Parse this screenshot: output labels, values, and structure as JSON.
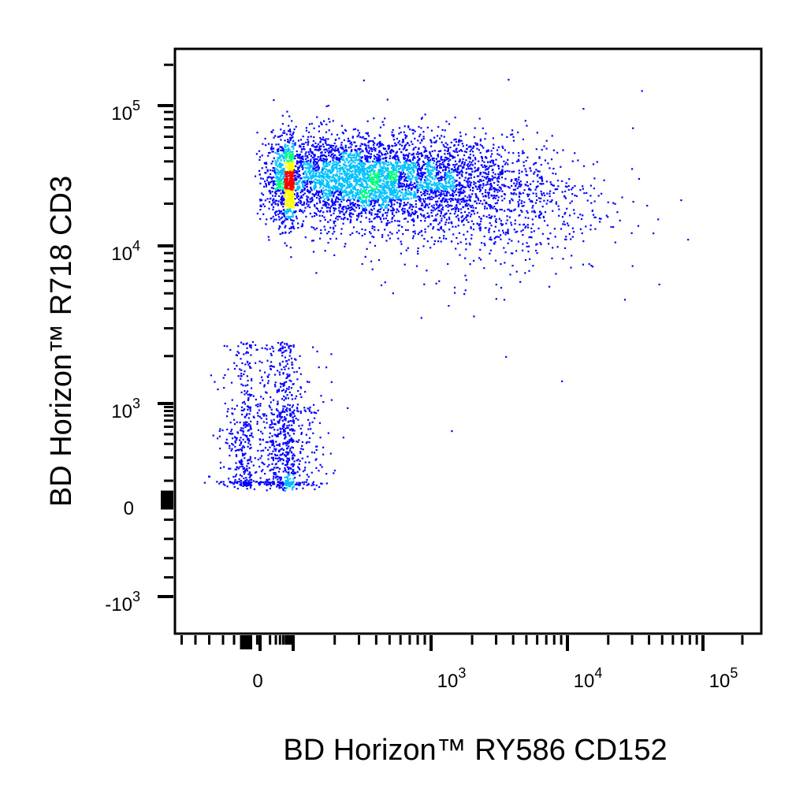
{
  "chart_data": {
    "type": "scatter",
    "xlabel": "BD Horizon™ RY586 CD152",
    "ylabel": "BD Horizon™ R718 CD3",
    "x_scale": "biexponential",
    "y_scale": "biexponential",
    "xlim": [
      -300,
      200000
    ],
    "ylim": [
      -1500,
      200000
    ],
    "x_ticks": [
      {
        "value": 0,
        "base": "0",
        "exp": ""
      },
      {
        "value": 1000,
        "base": "10",
        "exp": "3"
      },
      {
        "value": 10000,
        "base": "10",
        "exp": "4"
      },
      {
        "value": 100000,
        "base": "10",
        "exp": "5"
      }
    ],
    "y_ticks": [
      {
        "value": -1000,
        "base": "-10",
        "exp": "3"
      },
      {
        "value": 0,
        "base": "0",
        "exp": ""
      },
      {
        "value": 1000,
        "base": "10",
        "exp": "3"
      },
      {
        "value": 10000,
        "base": "10",
        "exp": "4"
      },
      {
        "value": 100000,
        "base": "10",
        "exp": "5"
      }
    ],
    "grid": false,
    "legend": "none",
    "density_colors": [
      "#0000ff",
      "#00c0ff",
      "#00ff80",
      "#ffff00",
      "#ff0000"
    ],
    "populations": [
      {
        "x_center": 300,
        "y_center": 30000,
        "x_spread_log": 0.55,
        "y_spread_log": 0.16,
        "fraction": 0.7
      },
      {
        "x_center": 30,
        "y_center": 500,
        "x_spread_log": 0.35,
        "y_spread_log": 0.5,
        "fraction": 0.18
      },
      {
        "x_center": 2500,
        "y_center": 20000,
        "x_spread_log": 0.45,
        "y_spread_log": 0.25,
        "fraction": 0.12
      }
    ],
    "outliers": [
      {
        "x": 3500,
        "y": 2000
      },
      {
        "x": 9000,
        "y": 1400
      },
      {
        "x": 1400,
        "y": 450
      },
      {
        "x": 35000,
        "y": 130000
      },
      {
        "x": 30000,
        "y": 70000
      }
    ]
  }
}
